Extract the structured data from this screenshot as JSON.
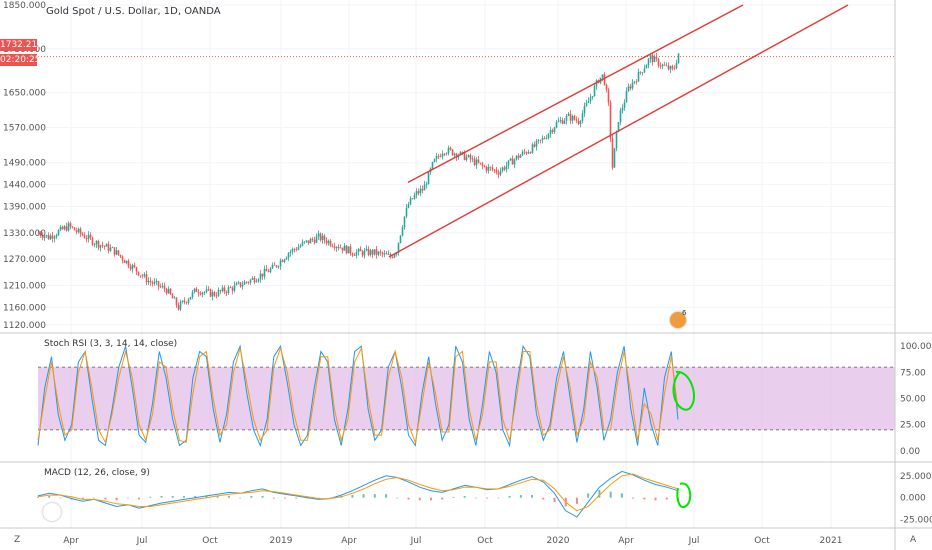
{
  "window": {
    "title": "Gold Spot / U.S. Dollar, 1D, OANDA"
  },
  "price_tag": {
    "value": "1732.213",
    "countdown": "02:20:25",
    "color": "#ef5350"
  },
  "indicators": {
    "stoch_label": "Stoch RSI (3, 3, 14, 14, close)",
    "macd_label": "MACD (12, 26, close, 9)"
  },
  "corner": {
    "left": "Z",
    "right": "A"
  },
  "badge": {
    "count": "6"
  },
  "colors": {
    "up": "#26a69a",
    "down": "#ef5350",
    "channel": "#e53935",
    "k_line": "#2196f3",
    "d_line": "#ff9800",
    "band_fill": "#e1bee7",
    "annotation": "#00e600",
    "macd_signal": "#ff9800"
  },
  "chart_data": [
    {
      "type": "candlestick",
      "title": "Gold Spot / U.S. Dollar, 1D, OANDA",
      "x_ticks": [
        "Apr",
        "Jul",
        "Oct",
        "2019",
        "Apr",
        "Jul",
        "Oct",
        "2020",
        "Apr",
        "Jul",
        "Oct",
        "2021"
      ],
      "y_ticks": [
        "1120.000",
        "1160.000",
        "1210.000",
        "1270.000",
        "1330.000",
        "1390.000",
        "1440.000",
        "1490.000",
        "1570.000",
        "1650.000",
        "1750.000",
        "1850.000"
      ],
      "ylim": [
        1115,
        1850
      ],
      "current_price": 1732.213,
      "path": [
        [
          0,
          1330
        ],
        [
          10,
          1320
        ],
        [
          30,
          1345
        ],
        [
          55,
          1310
        ],
        [
          75,
          1290
        ],
        [
          90,
          1260
        ],
        [
          110,
          1220
        ],
        [
          128,
          1200
        ],
        [
          140,
          1160
        ],
        [
          158,
          1200
        ],
        [
          175,
          1190
        ],
        [
          195,
          1205
        ],
        [
          215,
          1225
        ],
        [
          235,
          1250
        ],
        [
          250,
          1285
        ],
        [
          265,
          1305
        ],
        [
          280,
          1320
        ],
        [
          290,
          1310
        ],
        [
          300,
          1300
        ],
        [
          315,
          1285
        ],
        [
          335,
          1285
        ],
        [
          352,
          1275
        ],
        [
          358,
          1290
        ],
        [
          365,
          1360
        ],
        [
          370,
          1395
        ],
        [
          378,
          1420
        ],
        [
          385,
          1430
        ],
        [
          395,
          1490
        ],
        [
          405,
          1520
        ],
        [
          420,
          1510
        ],
        [
          430,
          1500
        ],
        [
          445,
          1480
        ],
        [
          460,
          1470
        ],
        [
          480,
          1505
        ],
        [
          495,
          1525
        ],
        [
          505,
          1545
        ],
        [
          518,
          1580
        ],
        [
          530,
          1595
        ],
        [
          540,
          1585
        ],
        [
          550,
          1630
        ],
        [
          560,
          1680
        ],
        [
          565,
          1690
        ],
        [
          570,
          1620
        ],
        [
          574,
          1480
        ],
        [
          580,
          1590
        ],
        [
          590,
          1660
        ],
        [
          600,
          1690
        ],
        [
          612,
          1730
        ],
        [
          625,
          1710
        ],
        [
          635,
          1700
        ],
        [
          640,
          1740
        ],
        [
          650,
          1720
        ],
        [
          660,
          1735
        ]
      ],
      "channel": {
        "upper": {
          "from": [
            370,
            1445
          ],
          "to": [
            705,
            1850
          ]
        },
        "lower": {
          "from": [
            351,
            1275
          ],
          "to": [
            810,
            1850
          ]
        }
      }
    },
    {
      "type": "line",
      "title": "Stoch RSI (3, 3, 14, 14, close)",
      "y_ticks": [
        "100.00",
        "75.00",
        "50.00",
        "25.00",
        "0.00"
      ],
      "ylim": [
        -5,
        105
      ],
      "band": [
        20,
        80
      ],
      "series": [
        {
          "name": "K",
          "values": [
            5,
            60,
            90,
            35,
            10,
            25,
            85,
            95,
            50,
            10,
            5,
            40,
            80,
            100,
            60,
            15,
            8,
            45,
            95,
            70,
            30,
            5,
            10,
            70,
            95,
            90,
            40,
            8,
            35,
            85,
            100,
            55,
            20,
            5,
            30,
            90,
            100,
            65,
            25,
            5,
            15,
            60,
            95,
            85,
            30,
            5,
            40,
            95,
            100,
            40,
            10,
            20,
            80,
            95,
            60,
            15,
            5,
            55,
            90,
            45,
            10,
            25,
            100,
            85,
            30,
            5,
            45,
            95,
            75,
            20,
            5,
            60,
            100,
            90,
            35,
            10,
            25,
            70,
            95,
            50,
            8,
            40,
            95,
            60,
            10,
            30,
            75,
            100,
            40,
            5,
            60,
            25,
            5,
            70,
            95,
            30
          ]
        },
        {
          "name": "D",
          "values": [
            10,
            50,
            85,
            45,
            15,
            20,
            75,
            95,
            60,
            20,
            8,
            35,
            70,
            95,
            70,
            25,
            10,
            35,
            85,
            80,
            40,
            10,
            8,
            55,
            90,
            95,
            50,
            15,
            25,
            75,
            98,
            65,
            30,
            10,
            20,
            80,
            98,
            75,
            35,
            10,
            10,
            50,
            90,
            90,
            40,
            10,
            30,
            85,
            98,
            50,
            15,
            15,
            70,
            95,
            70,
            25,
            8,
            45,
            85,
            55,
            18,
            18,
            90,
            95,
            40,
            10,
            35,
            85,
            85,
            30,
            10,
            50,
            95,
            95,
            45,
            15,
            20,
            60,
            90,
            60,
            15,
            30,
            85,
            70,
            20,
            20,
            65,
            95,
            55,
            10,
            45,
            35,
            10,
            55,
            90,
            40
          ]
        }
      ]
    },
    {
      "type": "line",
      "title": "MACD (12, 26, close, 9)",
      "y_ticks": [
        "25.000",
        "0.000",
        "-25.000"
      ],
      "ylim": [
        -30,
        35
      ],
      "series": [
        {
          "name": "MACD",
          "values": [
            2,
            5,
            3,
            -1,
            -4,
            -2,
            -6,
            -10,
            -8,
            -12,
            -9,
            -6,
            -4,
            -2,
            0,
            2,
            4,
            6,
            5,
            8,
            10,
            6,
            4,
            2,
            0,
            -2,
            -1,
            3,
            8,
            14,
            20,
            25,
            23,
            18,
            12,
            8,
            6,
            10,
            14,
            12,
            9,
            10,
            15,
            20,
            24,
            18,
            5,
            -15,
            -22,
            -5,
            12,
            22,
            30,
            26,
            20,
            15,
            12,
            8
          ]
        },
        {
          "name": "Signal",
          "values": [
            1,
            3,
            3,
            1,
            -2,
            -2,
            -4,
            -7,
            -8,
            -10,
            -10,
            -8,
            -6,
            -4,
            -2,
            0,
            2,
            4,
            5,
            6,
            8,
            7,
            5,
            3,
            1,
            -1,
            -1,
            1,
            5,
            10,
            16,
            21,
            23,
            20,
            15,
            11,
            8,
            9,
            12,
            12,
            10,
            10,
            13,
            17,
            21,
            20,
            10,
            -5,
            -15,
            -10,
            3,
            15,
            25,
            27,
            22,
            18,
            14,
            10
          ]
        }
      ],
      "histogram": [
        1,
        2,
        0,
        -2,
        -2,
        0,
        -2,
        -3,
        0,
        -2,
        1,
        2,
        2,
        2,
        2,
        2,
        2,
        2,
        0,
        2,
        2,
        -1,
        -1,
        -1,
        -1,
        -1,
        0,
        2,
        3,
        4,
        4,
        4,
        0,
        -2,
        -3,
        -3,
        -2,
        1,
        2,
        0,
        -1,
        0,
        2,
        3,
        3,
        -2,
        -5,
        -10,
        -7,
        5,
        9,
        7,
        5,
        -1,
        -2,
        -3,
        -2,
        -2
      ]
    }
  ]
}
